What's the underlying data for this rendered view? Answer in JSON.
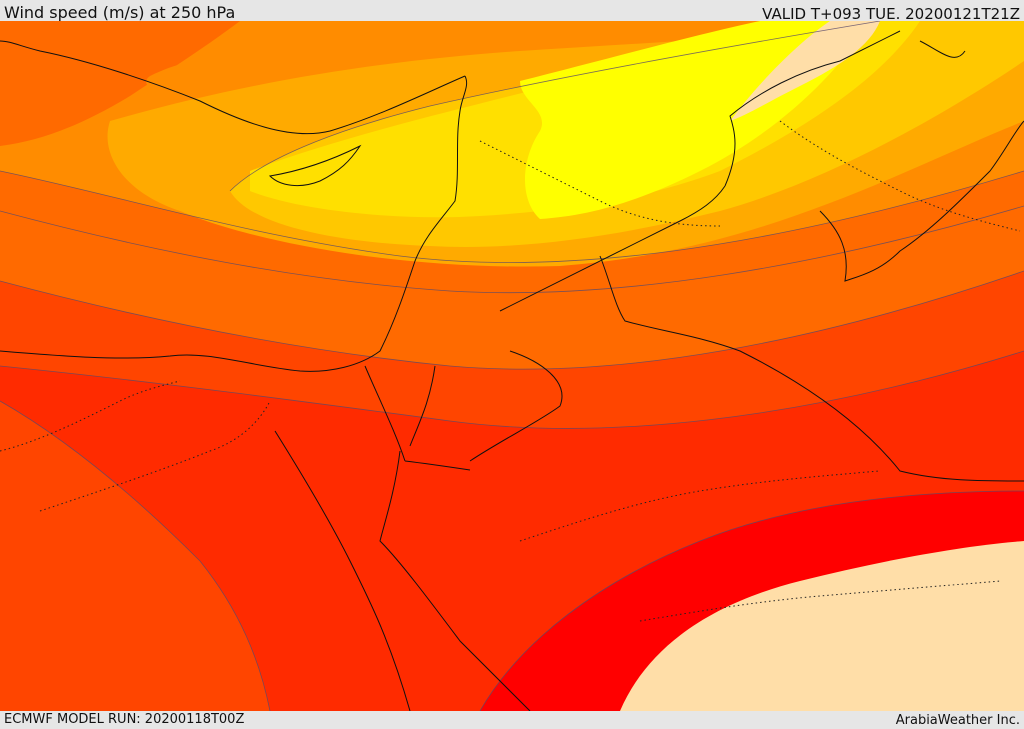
{
  "header": {
    "title": "Wind speed (m/s) at 250 hPa",
    "valid": "VALID T+093 TUE. 20200121T21Z"
  },
  "footer": {
    "model_run": "ECMWF MODEL RUN: 20200118T00Z",
    "credit": "ArabiaWeather Inc."
  },
  "map": {
    "field": "wind speed 250 hPa",
    "colors": {
      "light_orange": "#ff8c00",
      "orange": "#ff6a00",
      "orange_red": "#ff4500",
      "red_orange": "#ff2b00",
      "red": "#ff0000",
      "gold": "#ffc800",
      "yellow_gold": "#ffe000",
      "yellow": "#ffff00",
      "peach": "#ffdea8",
      "amber": "#ffaa00"
    }
  }
}
